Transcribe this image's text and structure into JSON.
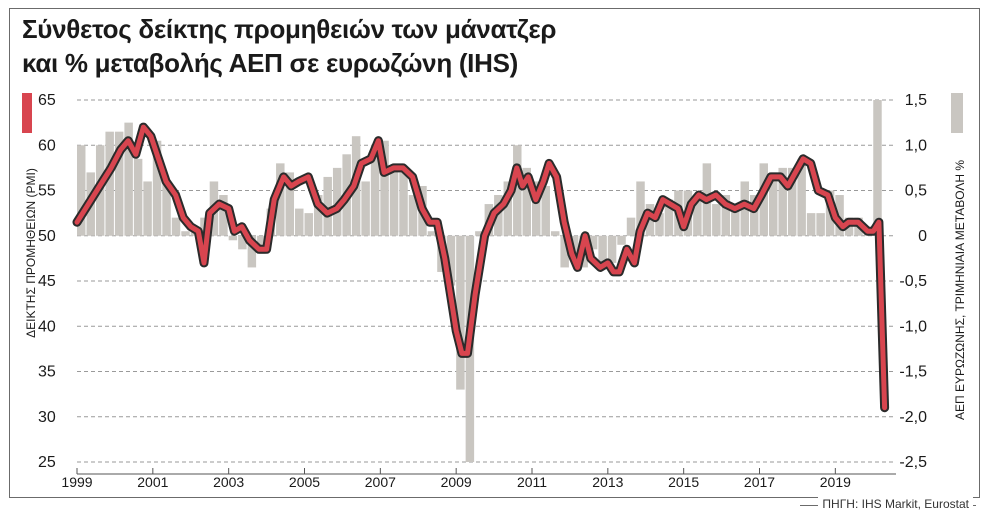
{
  "title_line1": "Σύνθετος δείκτης προμηθειών των μάνατζερ",
  "title_line2": "και % μεταβολής ΑΕΠ σε ευρωζώνη (IHS)",
  "source": "ΠΗΓΗ: IHS Markit, Eurostat",
  "colors": {
    "pmi_line": "#d8454f",
    "pmi_outline": "#2b2b2b",
    "gdp_bar": "#c9c6c1",
    "axis_text": "#1a1a1a",
    "grid": "#9a9a9a"
  },
  "chart_data": {
    "type": "bar+line",
    "left_axis": {
      "label": "ΔΕΙΚΤΗΣ ΠΡΟΜΗΘΕΙΩΝ (PMI)",
      "ylim": [
        25,
        65
      ],
      "ticks": [
        "25",
        "30",
        "35",
        "40",
        "45",
        "50",
        "55",
        "60",
        "65"
      ]
    },
    "right_axis": {
      "label": "ΑΕΠ ΕΥΡΩΖΩΝΗΣ, ΤΡΙΜΗΝΙΑΙΑ ΜΕΤΑΒΟΛΗ %",
      "ylim": [
        -2.5,
        1.5
      ],
      "ticks": [
        "-2,5",
        "-2,0",
        "-1,5",
        "-1,0",
        "-0,5",
        "0",
        "0,5",
        "1,0",
        "1,5"
      ]
    },
    "x_axis": {
      "xlim": [
        1999,
        2020.6
      ],
      "ticks": [
        "1999",
        "2001",
        "2003",
        "2005",
        "2007",
        "2009",
        "2011",
        "2013",
        "2015",
        "2017",
        "2019"
      ]
    },
    "grid": "horizontal dashed",
    "series": [
      {
        "name": "",
        "kind": "line",
        "axis": "left",
        "points": [
          [
            1999.0,
            51.5
          ],
          [
            1999.3,
            53.5
          ],
          [
            1999.6,
            55.5
          ],
          [
            1999.9,
            57.5
          ],
          [
            2000.15,
            59.5
          ],
          [
            2000.35,
            60.5
          ],
          [
            2000.55,
            59.0
          ],
          [
            2000.75,
            62.0
          ],
          [
            2000.95,
            61.0
          ],
          [
            2001.15,
            58.5
          ],
          [
            2001.35,
            56.0
          ],
          [
            2001.6,
            54.5
          ],
          [
            2001.8,
            52.0
          ],
          [
            2002.0,
            51.0
          ],
          [
            2002.2,
            50.5
          ],
          [
            2002.35,
            47.0
          ],
          [
            2002.5,
            52.5
          ],
          [
            2002.75,
            53.5
          ],
          [
            2003.0,
            53.0
          ],
          [
            2003.15,
            50.5
          ],
          [
            2003.35,
            51.0
          ],
          [
            2003.55,
            49.5
          ],
          [
            2003.8,
            48.5
          ],
          [
            2004.0,
            48.5
          ],
          [
            2004.2,
            54.0
          ],
          [
            2004.45,
            56.5
          ],
          [
            2004.65,
            55.5
          ],
          [
            2004.85,
            56.0
          ],
          [
            2005.1,
            56.5
          ],
          [
            2005.35,
            53.5
          ],
          [
            2005.6,
            52.5
          ],
          [
            2005.85,
            53.0
          ],
          [
            2006.05,
            54.0
          ],
          [
            2006.3,
            55.5
          ],
          [
            2006.5,
            58.0
          ],
          [
            2006.75,
            58.5
          ],
          [
            2006.95,
            60.5
          ],
          [
            2007.1,
            57.0
          ],
          [
            2007.35,
            57.5
          ],
          [
            2007.6,
            57.5
          ],
          [
            2007.85,
            56.5
          ],
          [
            2008.1,
            53.0
          ],
          [
            2008.3,
            51.5
          ],
          [
            2008.5,
            51.5
          ],
          [
            2008.7,
            47.5
          ],
          [
            2008.85,
            43.5
          ],
          [
            2009.0,
            39.5
          ],
          [
            2009.15,
            37.0
          ],
          [
            2009.3,
            37.0
          ],
          [
            2009.5,
            43.5
          ],
          [
            2009.75,
            50.0
          ],
          [
            2010.0,
            52.5
          ],
          [
            2010.25,
            53.5
          ],
          [
            2010.45,
            55.0
          ],
          [
            2010.6,
            57.5
          ],
          [
            2010.75,
            55.5
          ],
          [
            2010.9,
            56.5
          ],
          [
            2011.1,
            54.0
          ],
          [
            2011.3,
            56.0
          ],
          [
            2011.45,
            58.0
          ],
          [
            2011.65,
            56.5
          ],
          [
            2011.85,
            51.5
          ],
          [
            2012.05,
            48.0
          ],
          [
            2012.2,
            46.5
          ],
          [
            2012.4,
            50.0
          ],
          [
            2012.55,
            47.5
          ],
          [
            2012.8,
            46.5
          ],
          [
            2013.0,
            47.0
          ],
          [
            2013.15,
            46.0
          ],
          [
            2013.3,
            46.0
          ],
          [
            2013.5,
            48.5
          ],
          [
            2013.7,
            47.0
          ],
          [
            2013.85,
            50.5
          ],
          [
            2014.05,
            52.5
          ],
          [
            2014.25,
            52.0
          ],
          [
            2014.45,
            54.0
          ],
          [
            2014.65,
            53.5
          ],
          [
            2014.85,
            53.0
          ],
          [
            2015.0,
            51.0
          ],
          [
            2015.2,
            53.5
          ],
          [
            2015.4,
            54.5
          ],
          [
            2015.6,
            54.0
          ],
          [
            2015.85,
            54.5
          ],
          [
            2016.1,
            53.5
          ],
          [
            2016.35,
            53.0
          ],
          [
            2016.6,
            53.5
          ],
          [
            2016.85,
            53.0
          ],
          [
            2017.05,
            54.5
          ],
          [
            2017.3,
            56.5
          ],
          [
            2017.55,
            56.5
          ],
          [
            2017.75,
            55.5
          ],
          [
            2017.95,
            57.0
          ],
          [
            2018.15,
            58.5
          ],
          [
            2018.35,
            58.0
          ],
          [
            2018.55,
            55.0
          ],
          [
            2018.8,
            54.5
          ],
          [
            2019.0,
            52.0
          ],
          [
            2019.2,
            51.0
          ],
          [
            2019.35,
            51.5
          ],
          [
            2019.6,
            51.5
          ],
          [
            2019.85,
            50.5
          ],
          [
            2020.0,
            50.5
          ],
          [
            2020.15,
            51.5
          ],
          [
            2020.3,
            31.0
          ]
        ]
      },
      {
        "name": "",
        "kind": "bar",
        "axis": "right",
        "quarters": [
          [
            1999.0,
            1.0
          ],
          [
            1999.25,
            0.7
          ],
          [
            1999.5,
            1.0
          ],
          [
            1999.75,
            1.15
          ],
          [
            2000.0,
            1.15
          ],
          [
            2000.25,
            1.25
          ],
          [
            2000.5,
            0.85
          ],
          [
            2000.75,
            0.6
          ],
          [
            2001.0,
            1.05
          ],
          [
            2001.25,
            0.6
          ],
          [
            2001.5,
            0.2
          ],
          [
            2001.75,
            0.05
          ],
          [
            2002.0,
            0.05
          ],
          [
            2002.25,
            0.2
          ],
          [
            2002.5,
            0.6
          ],
          [
            2002.75,
            0.45
          ],
          [
            2003.0,
            -0.05
          ],
          [
            2003.25,
            -0.15
          ],
          [
            2003.5,
            -0.35
          ],
          [
            2003.75,
            -0.2
          ],
          [
            2004.0,
            0.3
          ],
          [
            2004.25,
            0.8
          ],
          [
            2004.5,
            0.7
          ],
          [
            2004.75,
            0.3
          ],
          [
            2005.0,
            0.25
          ],
          [
            2005.25,
            0.45
          ],
          [
            2005.5,
            0.65
          ],
          [
            2005.75,
            0.75
          ],
          [
            2006.0,
            0.9
          ],
          [
            2006.25,
            1.1
          ],
          [
            2006.5,
            0.6
          ],
          [
            2006.75,
            1.0
          ],
          [
            2007.0,
            1.05
          ],
          [
            2007.25,
            0.75
          ],
          [
            2007.5,
            0.7
          ],
          [
            2007.75,
            0.45
          ],
          [
            2008.0,
            0.55
          ],
          [
            2008.25,
            0.05
          ],
          [
            2008.5,
            -0.4
          ],
          [
            2008.75,
            -0.55
          ],
          [
            2009.0,
            -1.7
          ],
          [
            2009.25,
            -2.5
          ],
          [
            2009.5,
            0.05
          ],
          [
            2009.75,
            0.35
          ],
          [
            2010.0,
            0.45
          ],
          [
            2010.25,
            0.6
          ],
          [
            2010.5,
            1.0
          ],
          [
            2010.75,
            0.75
          ],
          [
            2011.0,
            0.6
          ],
          [
            2011.25,
            0.55
          ],
          [
            2011.5,
            0.05
          ],
          [
            2011.75,
            -0.35
          ],
          [
            2012.0,
            -0.2
          ],
          [
            2012.25,
            -0.35
          ],
          [
            2012.5,
            -0.15
          ],
          [
            2012.75,
            -0.35
          ],
          [
            2013.0,
            -0.3
          ],
          [
            2013.25,
            -0.1
          ],
          [
            2013.5,
            0.2
          ],
          [
            2013.75,
            0.6
          ],
          [
            2014.0,
            0.35
          ],
          [
            2014.25,
            0.25
          ],
          [
            2014.5,
            0.4
          ],
          [
            2014.75,
            0.5
          ],
          [
            2015.0,
            0.5
          ],
          [
            2015.25,
            0.45
          ],
          [
            2015.5,
            0.8
          ],
          [
            2015.75,
            0.35
          ],
          [
            2016.0,
            0.45
          ],
          [
            2016.25,
            0.3
          ],
          [
            2016.5,
            0.6
          ],
          [
            2016.75,
            0.45
          ],
          [
            2017.0,
            0.8
          ],
          [
            2017.25,
            0.7
          ],
          [
            2017.5,
            0.75
          ],
          [
            2017.75,
            0.75
          ],
          [
            2018.0,
            0.85
          ],
          [
            2018.25,
            0.25
          ],
          [
            2018.5,
            0.25
          ],
          [
            2018.75,
            0.5
          ],
          [
            2019.0,
            0.45
          ],
          [
            2019.25,
            0.2
          ],
          [
            2019.5,
            0.2
          ],
          [
            2019.75,
            0.05
          ],
          [
            2020.0,
            1.5
          ]
        ]
      }
    ]
  }
}
